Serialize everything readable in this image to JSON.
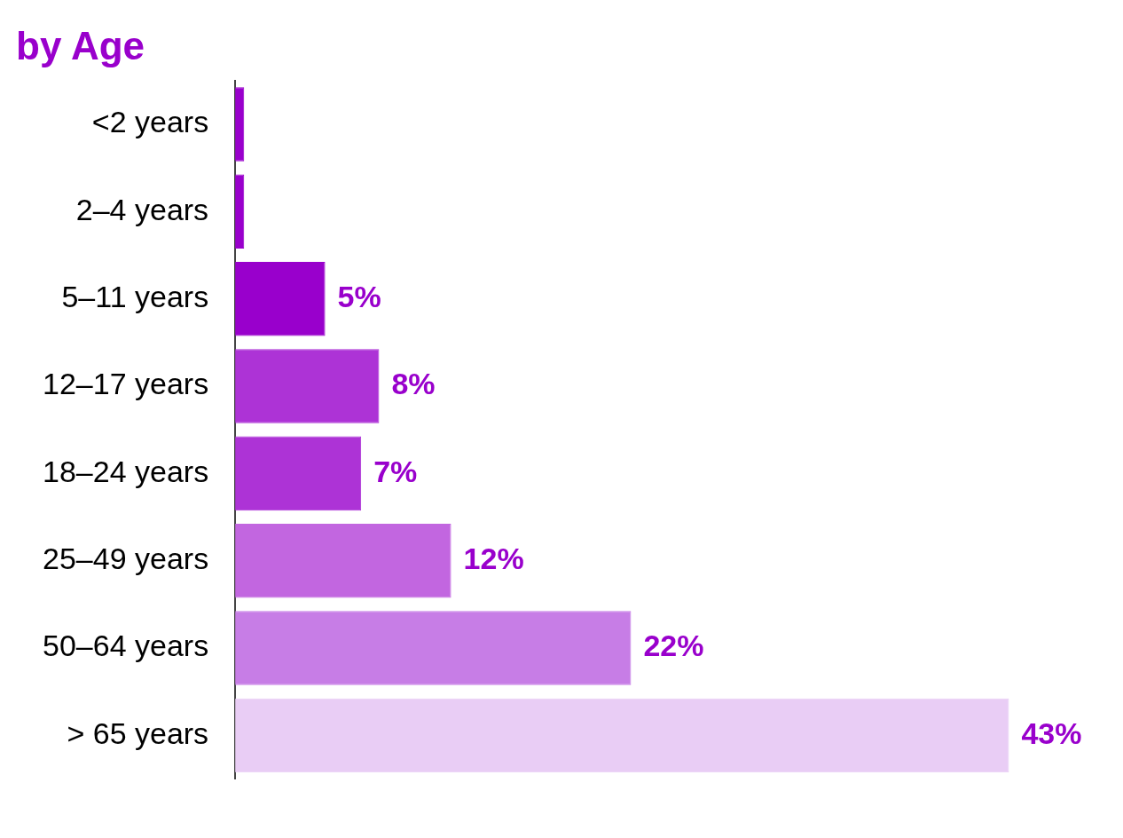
{
  "chart_data": {
    "type": "bar",
    "orientation": "horizontal",
    "title": "by Age",
    "categories": [
      "<2 years",
      "2–4 years",
      "5–11 years",
      "12–17 years",
      "18–24 years",
      "25–49 years",
      "50–64 years",
      "> 65 years"
    ],
    "values": [
      0.5,
      0.5,
      5,
      8,
      7,
      12,
      22,
      43
    ],
    "colors": [
      "#9900cc",
      "#9900cc",
      "#9900cc",
      "#ad33d6",
      "#ad33d6",
      "#c266e0",
      "#c77de6",
      "#e9cdf5"
    ],
    "value_labels": [
      null,
      null,
      "5%",
      "8%",
      "7%",
      "12%",
      "22%",
      "43%"
    ],
    "legend": false
  }
}
